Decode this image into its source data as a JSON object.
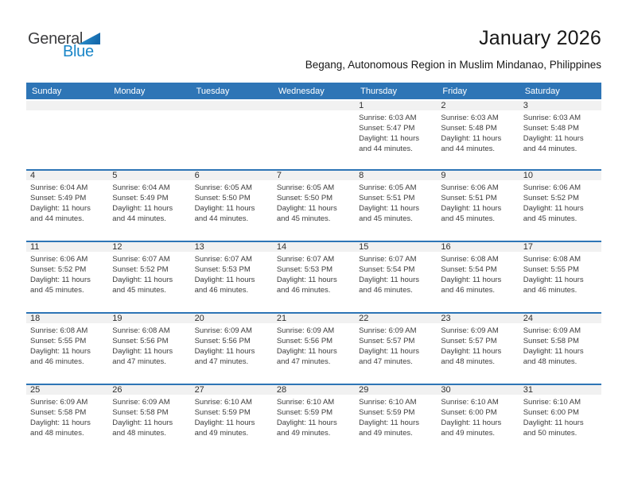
{
  "logo": {
    "word1": "General",
    "word2": "Blue"
  },
  "header": {
    "title": "January 2026",
    "subtitle": "Begang, Autonomous Region in Muslim Mindanao, Philippines"
  },
  "weekday_headers": [
    "Sunday",
    "Monday",
    "Tuesday",
    "Wednesday",
    "Thursday",
    "Friday",
    "Saturday"
  ],
  "labels": {
    "sunrise": "Sunrise:",
    "sunset": "Sunset:",
    "daylight": "Daylight:"
  },
  "colors": {
    "header_blue": "#2E75B6",
    "band_gray": "#F1F1F1",
    "logo_blue": "#1A86C8",
    "logo_dark": "#3D3D3F",
    "text_dark": "#3D3D3D"
  },
  "weeks": [
    [
      null,
      null,
      null,
      null,
      {
        "date": 1,
        "sunrise": "6:03 AM",
        "sunset": "5:47 PM",
        "daylight": "11 hours and 44 minutes."
      },
      {
        "date": 2,
        "sunrise": "6:03 AM",
        "sunset": "5:48 PM",
        "daylight": "11 hours and 44 minutes."
      },
      {
        "date": 3,
        "sunrise": "6:03 AM",
        "sunset": "5:48 PM",
        "daylight": "11 hours and 44 minutes."
      }
    ],
    [
      {
        "date": 4,
        "sunrise": "6:04 AM",
        "sunset": "5:49 PM",
        "daylight": "11 hours and 44 minutes."
      },
      {
        "date": 5,
        "sunrise": "6:04 AM",
        "sunset": "5:49 PM",
        "daylight": "11 hours and 44 minutes."
      },
      {
        "date": 6,
        "sunrise": "6:05 AM",
        "sunset": "5:50 PM",
        "daylight": "11 hours and 44 minutes."
      },
      {
        "date": 7,
        "sunrise": "6:05 AM",
        "sunset": "5:50 PM",
        "daylight": "11 hours and 45 minutes."
      },
      {
        "date": 8,
        "sunrise": "6:05 AM",
        "sunset": "5:51 PM",
        "daylight": "11 hours and 45 minutes."
      },
      {
        "date": 9,
        "sunrise": "6:06 AM",
        "sunset": "5:51 PM",
        "daylight": "11 hours and 45 minutes."
      },
      {
        "date": 10,
        "sunrise": "6:06 AM",
        "sunset": "5:52 PM",
        "daylight": "11 hours and 45 minutes."
      }
    ],
    [
      {
        "date": 11,
        "sunrise": "6:06 AM",
        "sunset": "5:52 PM",
        "daylight": "11 hours and 45 minutes."
      },
      {
        "date": 12,
        "sunrise": "6:07 AM",
        "sunset": "5:52 PM",
        "daylight": "11 hours and 45 minutes."
      },
      {
        "date": 13,
        "sunrise": "6:07 AM",
        "sunset": "5:53 PM",
        "daylight": "11 hours and 46 minutes."
      },
      {
        "date": 14,
        "sunrise": "6:07 AM",
        "sunset": "5:53 PM",
        "daylight": "11 hours and 46 minutes."
      },
      {
        "date": 15,
        "sunrise": "6:07 AM",
        "sunset": "5:54 PM",
        "daylight": "11 hours and 46 minutes."
      },
      {
        "date": 16,
        "sunrise": "6:08 AM",
        "sunset": "5:54 PM",
        "daylight": "11 hours and 46 minutes."
      },
      {
        "date": 17,
        "sunrise": "6:08 AM",
        "sunset": "5:55 PM",
        "daylight": "11 hours and 46 minutes."
      }
    ],
    [
      {
        "date": 18,
        "sunrise": "6:08 AM",
        "sunset": "5:55 PM",
        "daylight": "11 hours and 46 minutes."
      },
      {
        "date": 19,
        "sunrise": "6:08 AM",
        "sunset": "5:56 PM",
        "daylight": "11 hours and 47 minutes."
      },
      {
        "date": 20,
        "sunrise": "6:09 AM",
        "sunset": "5:56 PM",
        "daylight": "11 hours and 47 minutes."
      },
      {
        "date": 21,
        "sunrise": "6:09 AM",
        "sunset": "5:56 PM",
        "daylight": "11 hours and 47 minutes."
      },
      {
        "date": 22,
        "sunrise": "6:09 AM",
        "sunset": "5:57 PM",
        "daylight": "11 hours and 47 minutes."
      },
      {
        "date": 23,
        "sunrise": "6:09 AM",
        "sunset": "5:57 PM",
        "daylight": "11 hours and 48 minutes."
      },
      {
        "date": 24,
        "sunrise": "6:09 AM",
        "sunset": "5:58 PM",
        "daylight": "11 hours and 48 minutes."
      }
    ],
    [
      {
        "date": 25,
        "sunrise": "6:09 AM",
        "sunset": "5:58 PM",
        "daylight": "11 hours and 48 minutes."
      },
      {
        "date": 26,
        "sunrise": "6:09 AM",
        "sunset": "5:58 PM",
        "daylight": "11 hours and 48 minutes."
      },
      {
        "date": 27,
        "sunrise": "6:10 AM",
        "sunset": "5:59 PM",
        "daylight": "11 hours and 49 minutes."
      },
      {
        "date": 28,
        "sunrise": "6:10 AM",
        "sunset": "5:59 PM",
        "daylight": "11 hours and 49 minutes."
      },
      {
        "date": 29,
        "sunrise": "6:10 AM",
        "sunset": "5:59 PM",
        "daylight": "11 hours and 49 minutes."
      },
      {
        "date": 30,
        "sunrise": "6:10 AM",
        "sunset": "6:00 PM",
        "daylight": "11 hours and 49 minutes."
      },
      {
        "date": 31,
        "sunrise": "6:10 AM",
        "sunset": "6:00 PM",
        "daylight": "11 hours and 50 minutes."
      }
    ]
  ]
}
